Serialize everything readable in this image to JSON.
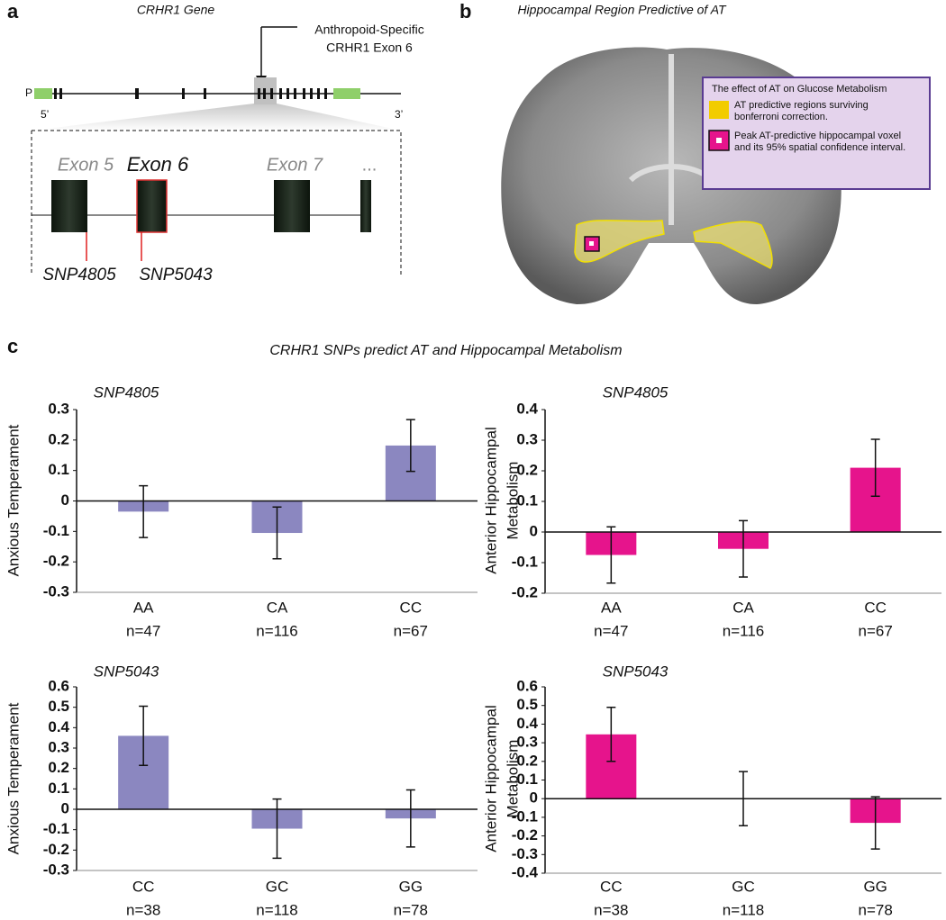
{
  "panel_a": {
    "label": "a",
    "title": "CRHR1 Gene",
    "annotation": [
      "Anthropoid-Specific",
      "CRHR1 Exon 6"
    ],
    "promoter": "P",
    "five_prime": "5’",
    "three_prime": "3’",
    "exons": [
      "Exon 5",
      "Exon 6",
      "Exon 7",
      "..."
    ],
    "snps": [
      "SNP4805",
      "SNP5043"
    ]
  },
  "panel_b": {
    "label": "b",
    "title": "Hippocampal Region Predictive of AT",
    "legend_title": "The effect of AT on Glucose Metabolism",
    "legend_items": [
      [
        "AT predictive regions surviving",
        "bonferroni correction."
      ],
      [
        "Peak AT-predictive hippocampal voxel",
        "and its 95% spatial confidence interval."
      ]
    ]
  },
  "panel_c": {
    "label": "c",
    "title": "CRHR1 SNPs predict AT and Hippocampal Metabolism"
  },
  "chart_data": [
    {
      "type": "bar",
      "title": "SNP4805",
      "ylabel": [
        "Anxious Temperament"
      ],
      "categories": [
        "AA",
        "CA",
        "CC"
      ],
      "sample_sizes": [
        "n=47",
        "n=116",
        "n=67"
      ],
      "values": [
        -0.035,
        -0.105,
        0.182
      ],
      "errors": [
        0.085,
        0.085,
        0.085
      ],
      "color": "#8b87c0",
      "ylim": [
        -0.3,
        0.3
      ],
      "yticks": [
        0.3,
        0.2,
        0.1,
        0,
        -0.1,
        -0.2,
        -0.3
      ]
    },
    {
      "type": "bar",
      "title": "SNP4805",
      "ylabel": [
        "Anterior Hippocampal",
        "Metabolism"
      ],
      "categories": [
        "AA",
        "CA",
        "CC"
      ],
      "sample_sizes": [
        "n=47",
        "n=116",
        "n=67"
      ],
      "values": [
        -0.075,
        -0.055,
        0.21
      ],
      "errors": [
        0.092,
        0.092,
        0.093
      ],
      "color": "#e6148c",
      "ylim": [
        -0.2,
        0.4
      ],
      "yticks": [
        0.4,
        0.3,
        0.2,
        0.1,
        0,
        -0.1,
        -0.2
      ]
    },
    {
      "type": "bar",
      "title": "SNP5043",
      "ylabel": [
        "Anxious Temperament"
      ],
      "categories": [
        "CC",
        "GC",
        "GG"
      ],
      "sample_sizes": [
        "n=38",
        "n=118",
        "n=78"
      ],
      "values": [
        0.36,
        -0.095,
        -0.045
      ],
      "errors": [
        0.145,
        0.145,
        0.14
      ],
      "color": "#8b87c0",
      "ylim": [
        -0.3,
        0.6
      ],
      "yticks": [
        0.6,
        0.5,
        0.4,
        0.3,
        0.2,
        0.1,
        0,
        -0.1,
        -0.2,
        -0.3
      ]
    },
    {
      "type": "bar",
      "title": "SNP5043",
      "ylabel": [
        "Anterior Hippocampal",
        "Metabolism"
      ],
      "categories": [
        "CC",
        "GC",
        "GG"
      ],
      "sample_sizes": [
        "n=38",
        "n=118",
        "n=78"
      ],
      "values": [
        0.345,
        0,
        -0.13
      ],
      "errors": [
        0.145,
        0.145,
        0.14
      ],
      "color": "#e6148c",
      "ylim": [
        -0.4,
        0.6
      ],
      "yticks": [
        0.6,
        0.5,
        0.4,
        0.3,
        0.2,
        0.1,
        0,
        -0.1,
        -0.2,
        -0.3,
        -0.4
      ]
    }
  ]
}
